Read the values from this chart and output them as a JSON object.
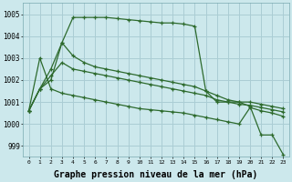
{
  "bg_color": "#cce8ec",
  "grid_color": "#aacdd4",
  "line_color": "#2d6a2d",
  "xlabel": "Graphe pression niveau de la mer (hPa)",
  "ylim": [
    998.5,
    1005.5
  ],
  "xlim": [
    -0.5,
    23.5
  ],
  "yticks": [
    999,
    1000,
    1001,
    1002,
    1003,
    1004,
    1005
  ],
  "xticks": [
    0,
    1,
    2,
    3,
    4,
    5,
    6,
    7,
    8,
    9,
    10,
    11,
    12,
    13,
    14,
    15,
    16,
    17,
    18,
    19,
    20,
    21,
    22,
    23
  ],
  "series": [
    [
      1000.6,
      1001.6,
      1002.0,
      1003.7,
      1004.85,
      1004.85,
      1004.85,
      1004.85,
      1004.8,
      1004.75,
      1004.7,
      1004.65,
      1004.6,
      1004.6,
      1004.55,
      1004.45,
      1001.5,
      1001.0,
      1001.0,
      1001.0,
      1000.8,
      999.5,
      999.5,
      998.6
    ],
    [
      1000.6,
      1001.6,
      1002.5,
      1003.7,
      1003.1,
      1002.8,
      1002.6,
      1002.5,
      1002.4,
      1002.3,
      1002.2,
      1002.1,
      1002.0,
      1001.9,
      1001.8,
      1001.7,
      1001.5,
      1001.3,
      1001.1,
      1001.0,
      1001.0,
      1000.9,
      1000.8,
      1000.7
    ],
    [
      1000.6,
      1001.6,
      1002.2,
      1002.8,
      1002.5,
      1002.4,
      1002.3,
      1002.2,
      1002.1,
      1002.0,
      1001.9,
      1001.8,
      1001.7,
      1001.6,
      1001.5,
      1001.4,
      1001.3,
      1001.1,
      1001.0,
      1000.9,
      1000.85,
      1000.75,
      1000.65,
      1000.55
    ],
    [
      1000.6,
      1003.0,
      1001.6,
      1001.4,
      1001.3,
      1001.2,
      1001.1,
      1001.0,
      1000.9,
      1000.8,
      1000.7,
      1000.65,
      1000.6,
      1000.55,
      1000.5,
      1000.4,
      1000.3,
      1000.2,
      1000.1,
      1000.0,
      1000.75,
      1000.6,
      1000.5,
      1000.35
    ]
  ]
}
